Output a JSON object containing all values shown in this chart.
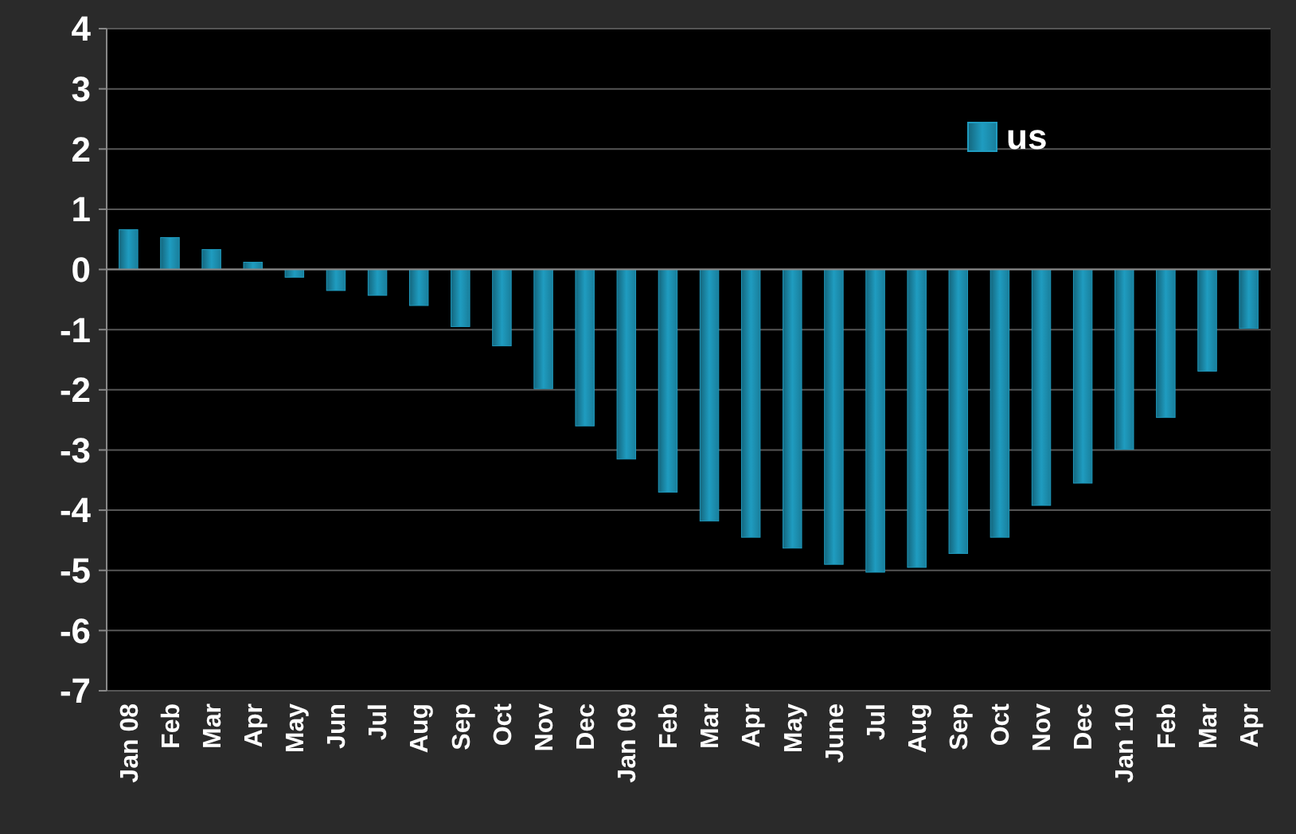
{
  "chart_data": {
    "type": "bar",
    "categories": [
      "Jan 08",
      "Feb",
      "Mar",
      "Apr",
      "May",
      "Jun",
      "Jul",
      "Aug",
      "Sep",
      "Oct",
      "Nov",
      "Dec",
      "Jan 09",
      "Feb",
      "Mar",
      "Apr",
      "May",
      "June",
      "Jul",
      "Aug",
      "Sep",
      "Oct",
      "Nov",
      "Dec",
      "Jan 10",
      "Feb",
      "Mar",
      "Apr"
    ],
    "series": [
      {
        "name": "us",
        "color": "#1f9cc0",
        "values": [
          0.66,
          0.53,
          0.33,
          0.12,
          -0.13,
          -0.35,
          -0.43,
          -0.6,
          -0.95,
          -1.27,
          -1.98,
          -2.6,
          -3.15,
          -3.7,
          -4.18,
          -4.45,
          -4.63,
          -4.9,
          -5.03,
          -4.95,
          -4.72,
          -4.45,
          -3.92,
          -3.55,
          -2.99,
          -2.46,
          -1.69,
          -0.98
        ]
      }
    ],
    "ylim": [
      -7,
      4
    ],
    "yticks": [
      -7,
      -6,
      -5,
      -4,
      -3,
      -2,
      -1,
      0,
      1,
      2,
      3,
      4
    ],
    "grid": "y",
    "legend": "top right"
  }
}
